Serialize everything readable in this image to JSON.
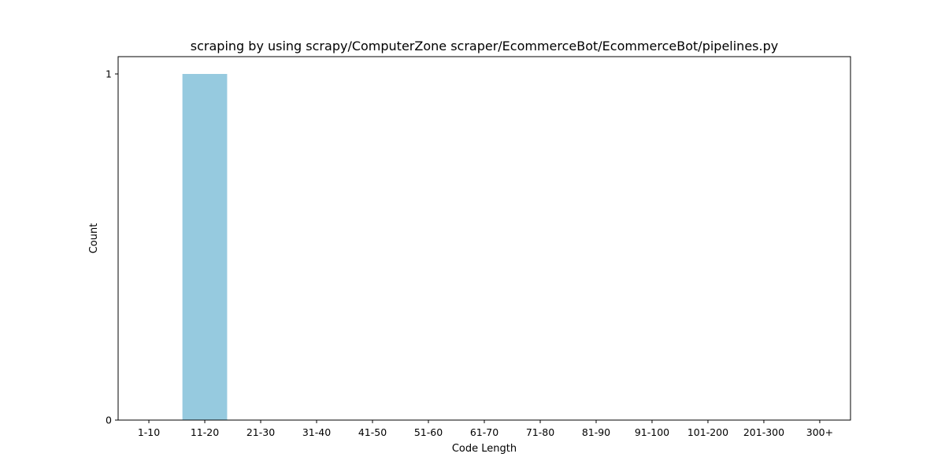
{
  "chart_data": {
    "type": "bar",
    "title": "scraping by using scrapy/ComputerZone scraper/EcommerceBot/EcommerceBot/pipelines.py",
    "xlabel": "Code Length",
    "ylabel": "Count",
    "categories": [
      "1-10",
      "11-20",
      "21-30",
      "31-40",
      "41-50",
      "51-60",
      "61-70",
      "71-80",
      "81-90",
      "91-100",
      "101-200",
      "201-300",
      "300+"
    ],
    "values": [
      0,
      1,
      0,
      0,
      0,
      0,
      0,
      0,
      0,
      0,
      0,
      0,
      0
    ],
    "ylim": [
      0,
      1.05
    ],
    "yticks": [
      0,
      1
    ],
    "bar_color": "#96cadf",
    "grid": false,
    "legend": "none"
  }
}
